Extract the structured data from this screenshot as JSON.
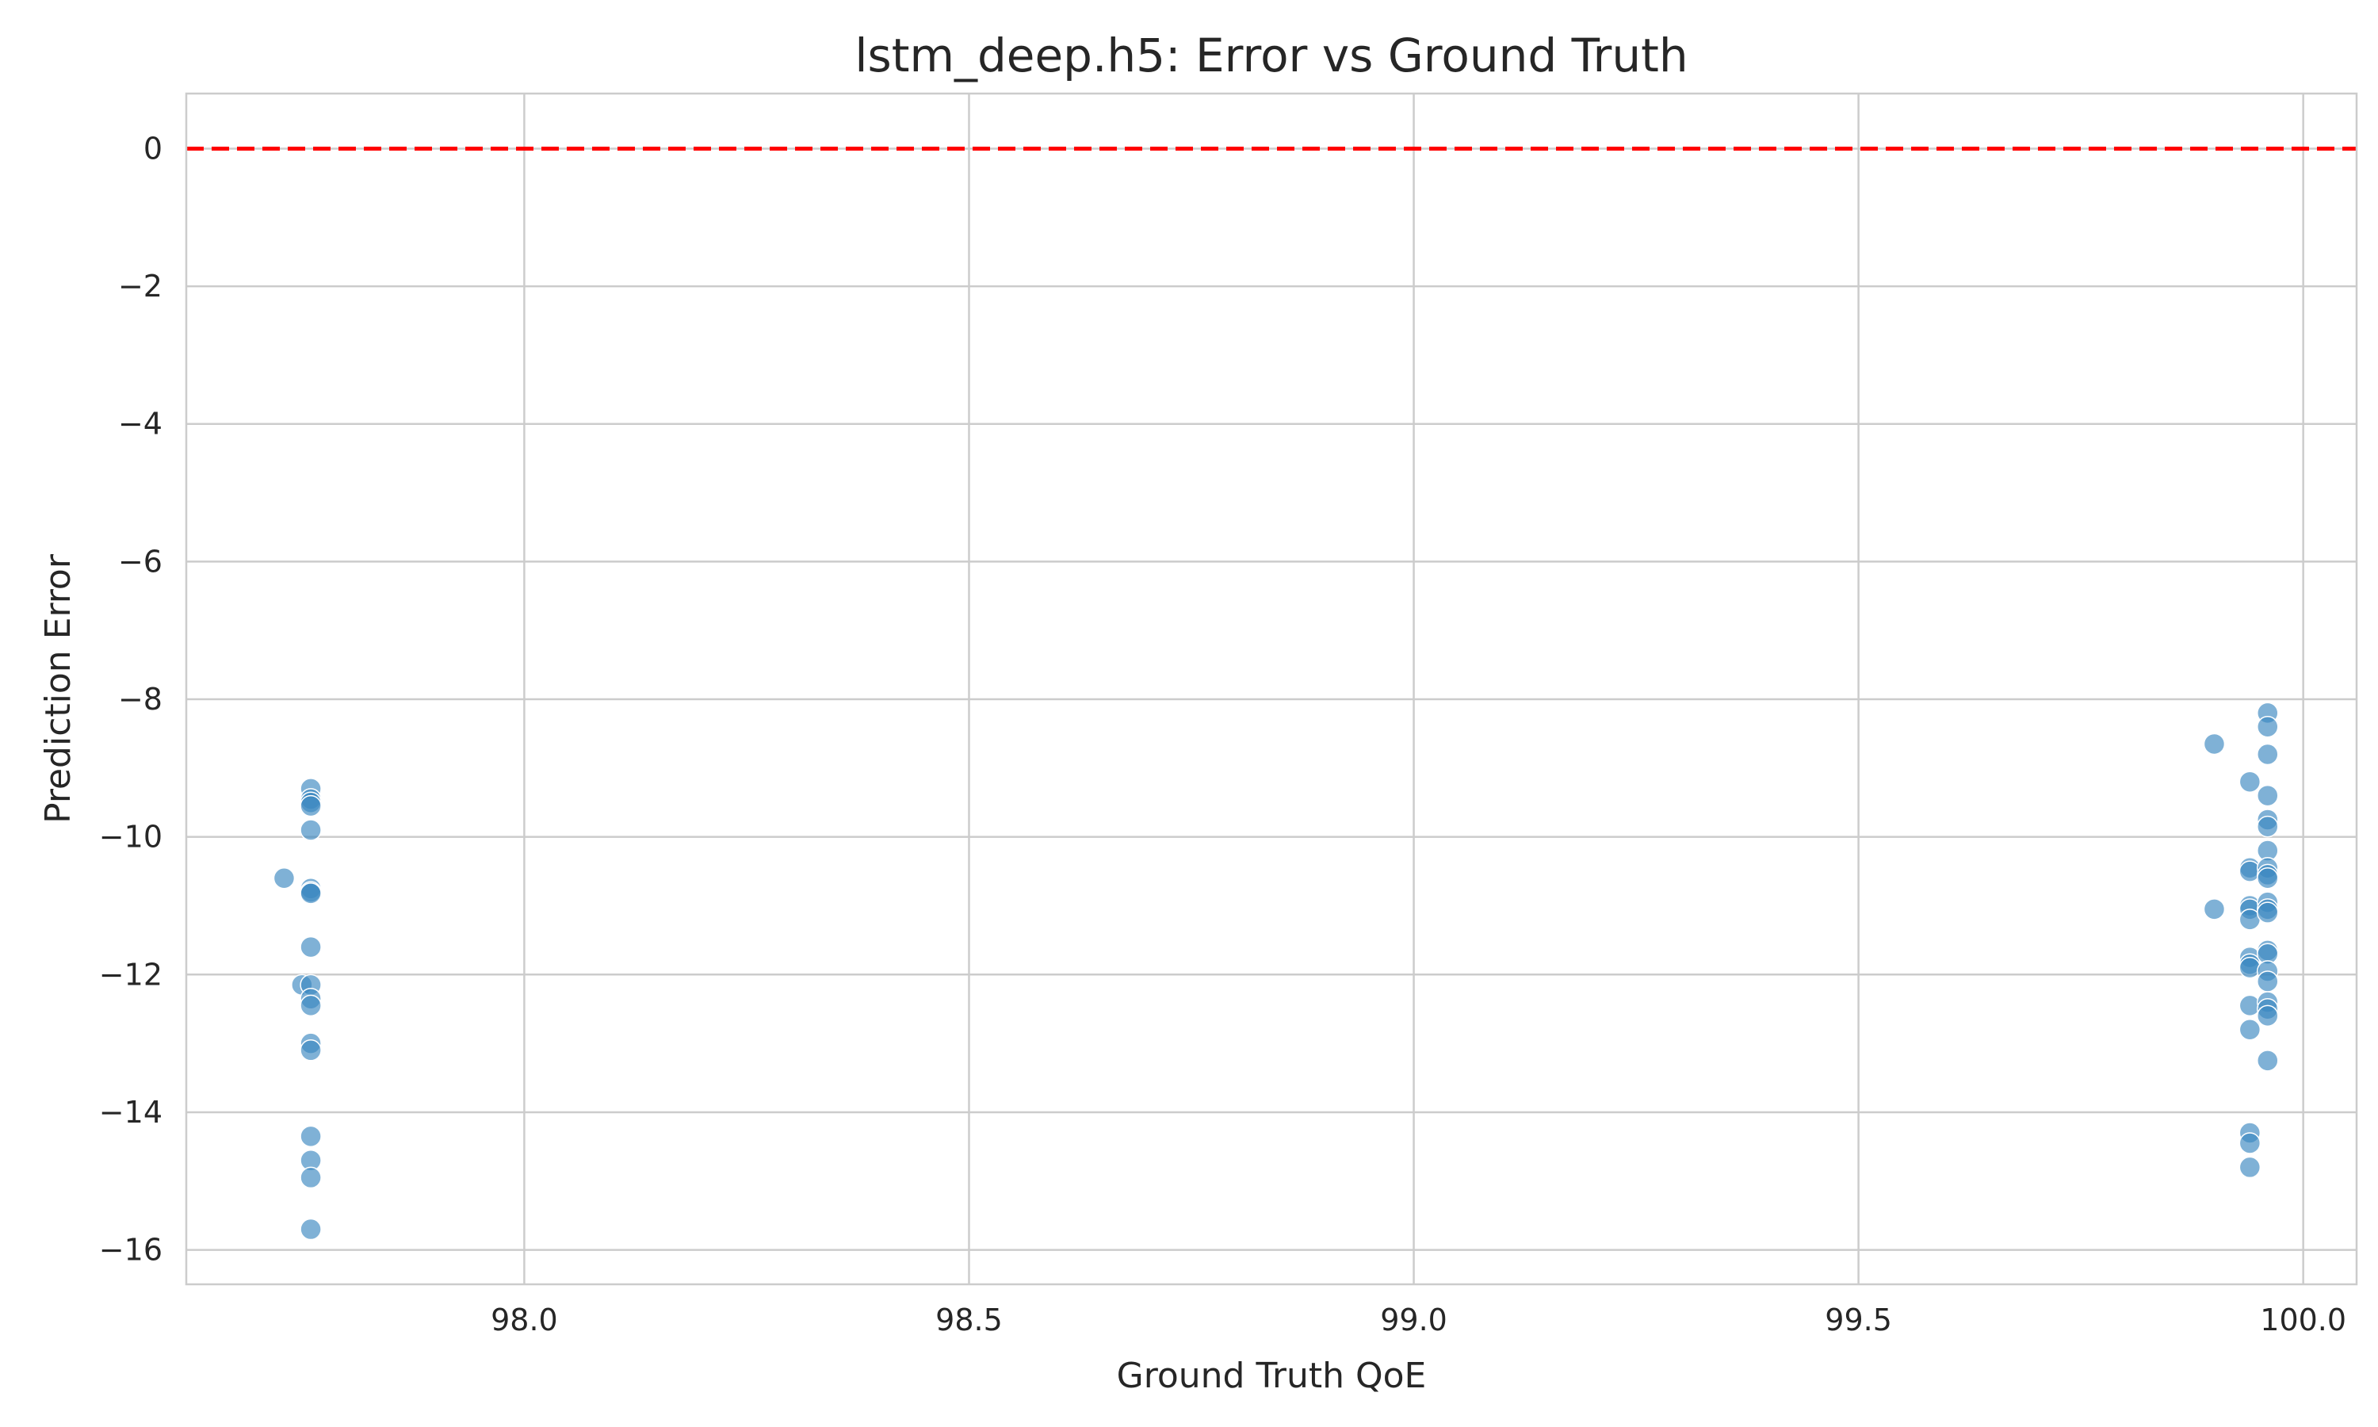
{
  "chart_data": {
    "type": "scatter",
    "title": "lstm_deep.h5: Error vs Ground Truth",
    "xlabel": "Ground Truth QoE",
    "ylabel": "Prediction Error",
    "xlim": [
      97.62,
      100.06
    ],
    "ylim": [
      -16.5,
      0.8
    ],
    "xticks": [
      98.0,
      98.5,
      99.0,
      99.5,
      100.0
    ],
    "xtick_labels": [
      "98.0",
      "98.5",
      "99.0",
      "99.5",
      "100.0"
    ],
    "yticks": [
      0,
      -2,
      -4,
      -6,
      -8,
      -10,
      -12,
      -14,
      -16
    ],
    "ytick_labels": [
      "0",
      "−2",
      "−4",
      "−6",
      "−8",
      "−10",
      "−12",
      "−14",
      "−16"
    ],
    "grid": true,
    "reference_line": {
      "y": 0,
      "color": "#ff0000",
      "style": "dashed"
    },
    "point_color": "#3b87c0",
    "series": [
      {
        "points": [
          [
            97.73,
            -10.6
          ],
          [
            97.75,
            -12.15
          ],
          [
            97.76,
            -9.3
          ],
          [
            97.76,
            -9.45
          ],
          [
            97.76,
            -9.5
          ],
          [
            97.76,
            -9.55
          ],
          [
            97.76,
            -9.9
          ],
          [
            97.76,
            -10.75
          ],
          [
            97.76,
            -10.8
          ],
          [
            97.76,
            -10.82
          ],
          [
            97.76,
            -11.6
          ],
          [
            97.76,
            -12.15
          ],
          [
            97.76,
            -12.35
          ],
          [
            97.76,
            -12.45
          ],
          [
            97.76,
            -13.0
          ],
          [
            97.76,
            -13.1
          ],
          [
            97.76,
            -14.35
          ],
          [
            97.76,
            -14.7
          ],
          [
            97.76,
            -14.95
          ],
          [
            97.76,
            -15.7
          ],
          [
            99.9,
            -8.65
          ],
          [
            99.9,
            -11.05
          ],
          [
            99.94,
            -9.2
          ],
          [
            99.94,
            -10.45
          ],
          [
            99.94,
            -10.5
          ],
          [
            99.94,
            -11.0
          ],
          [
            99.94,
            -11.05
          ],
          [
            99.94,
            -11.2
          ],
          [
            99.94,
            -11.75
          ],
          [
            99.94,
            -11.85
          ],
          [
            99.94,
            -11.9
          ],
          [
            99.94,
            -12.45
          ],
          [
            99.94,
            -12.8
          ],
          [
            99.94,
            -14.3
          ],
          [
            99.94,
            -14.45
          ],
          [
            99.94,
            -14.8
          ],
          [
            99.96,
            -8.2
          ],
          [
            99.96,
            -8.4
          ],
          [
            99.96,
            -8.8
          ],
          [
            99.96,
            -9.4
          ],
          [
            99.96,
            -9.75
          ],
          [
            99.96,
            -9.85
          ],
          [
            99.96,
            -10.2
          ],
          [
            99.96,
            -10.45
          ],
          [
            99.96,
            -10.55
          ],
          [
            99.96,
            -10.6
          ],
          [
            99.96,
            -10.95
          ],
          [
            99.96,
            -11.05
          ],
          [
            99.96,
            -11.1
          ],
          [
            99.96,
            -11.65
          ],
          [
            99.96,
            -11.7
          ],
          [
            99.96,
            -11.95
          ],
          [
            99.96,
            -12.1
          ],
          [
            99.96,
            -12.4
          ],
          [
            99.96,
            -12.5
          ],
          [
            99.96,
            -12.6
          ],
          [
            99.96,
            -13.25
          ]
        ]
      }
    ]
  }
}
